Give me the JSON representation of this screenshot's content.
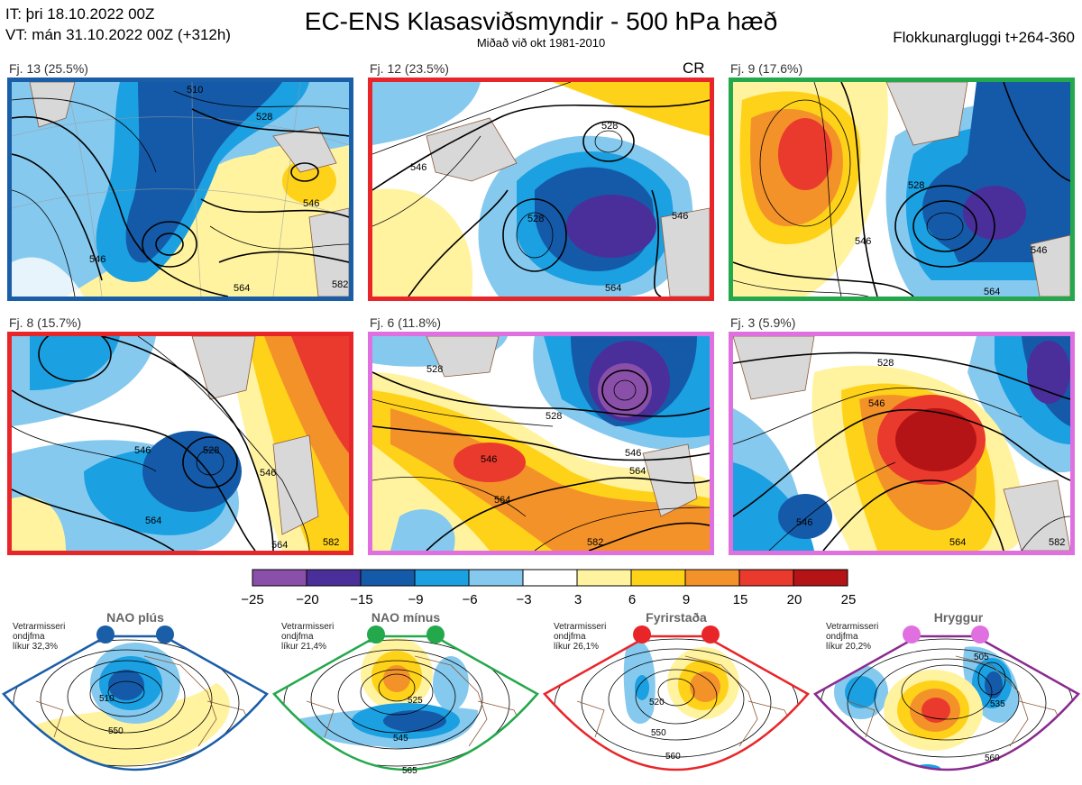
{
  "header": {
    "it_line": "IT: þri 18.10.2022 00Z",
    "vt_line": "VT: mán 31.10.2022 00Z  (+312h)",
    "title": "EC-ENS Klasasviðsmyndir - 500 hPa hæð",
    "subtitle": "Miðað við okt 1981-2010",
    "window": "Flokkunargluggi t+264-360"
  },
  "panels": [
    {
      "label": "Fj. 13 (25.5%)",
      "border_color": "#1a5ea8",
      "contours": [
        "510",
        "528",
        "546",
        "546",
        "564",
        "582"
      ]
    },
    {
      "label": "Fj. 12 (23.5%)",
      "border_color": "#e8262a",
      "tag": "CR",
      "contours": [
        "528",
        "528",
        "546",
        "546",
        "564"
      ]
    },
    {
      "label": "Fj. 9 (17.6%)",
      "border_color": "#23a84b",
      "contours": [
        "528",
        "546",
        "546",
        "564"
      ]
    },
    {
      "label": "Fj. 8 (15.7%)",
      "border_color": "#e8262a",
      "contours": [
        "528",
        "546",
        "546",
        "564",
        "564",
        "582"
      ]
    },
    {
      "label": "Fj. 6 (11.8%)",
      "border_color": "#e070e0",
      "contours": [
        "528",
        "528",
        "546",
        "546",
        "564",
        "564",
        "582"
      ]
    },
    {
      "label": "Fj. 3 (5.9%)",
      "border_color": "#e070e0",
      "contours": [
        "528",
        "546",
        "546",
        "564",
        "582"
      ]
    }
  ],
  "color_scale": {
    "ticks": [
      "−25",
      "−20",
      "−15",
      "−9",
      "−6",
      "−3",
      "3",
      "6",
      "9",
      "15",
      "20",
      "25"
    ],
    "colors": [
      "#8a4fa8",
      "#4a2f9a",
      "#155aa8",
      "#1ba0e2",
      "#86c9ee",
      "#ffffff",
      "#fff3a0",
      "#ffd21a",
      "#f4922a",
      "#ea3a2d",
      "#b41416"
    ]
  },
  "regimes": [
    {
      "name": "NAO plús",
      "note": [
        "Vetrarmisseri",
        "ondjfma",
        "líkur 32,3%"
      ],
      "color": "#1a5ea8",
      "dot_color": "#1a5ea8",
      "contours": [
        "510",
        "550"
      ]
    },
    {
      "name": "NAO mínus",
      "note": [
        "Vetrarmisseri",
        "ondjfma",
        "líkur 21,4%"
      ],
      "color": "#23a84b",
      "dot_color": "#23a84b",
      "contours": [
        "525",
        "545",
        "565"
      ]
    },
    {
      "name": "Fyrirstaða",
      "note": [
        "Vetrarmisseri",
        "ondjfma",
        "líkur 26,1%"
      ],
      "color": "#e8262a",
      "dot_color": "#e8262a",
      "contours": [
        "520",
        "550",
        "560"
      ]
    },
    {
      "name": "Hryggur",
      "note": [
        "Vetrarmisseri",
        "ondjfma",
        "líkur 20,2%"
      ],
      "color": "#8a2b8f",
      "dot_color": "#e070e0",
      "contours": [
        "505",
        "535",
        "560"
      ]
    }
  ]
}
